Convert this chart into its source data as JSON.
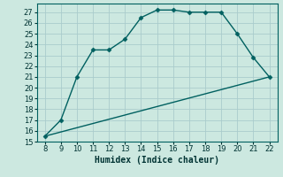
{
  "title": "",
  "xlabel": "Humidex (Indice chaleur)",
  "bg_color": "#cce8e0",
  "grid_color": "#aacccc",
  "line_color": "#006060",
  "curve_x": [
    8,
    9,
    10,
    11,
    12,
    13,
    14,
    15,
    16,
    17,
    18,
    19,
    20,
    21,
    22
  ],
  "curve_y": [
    15.5,
    17.0,
    21.0,
    23.5,
    23.5,
    24.5,
    26.5,
    27.2,
    27.2,
    27.0,
    27.0,
    27.0,
    25.0,
    22.8,
    21.0
  ],
  "line_x": [
    8,
    22
  ],
  "line_y": [
    15.5,
    21.0
  ],
  "xlim": [
    7.5,
    22.5
  ],
  "ylim": [
    15,
    27.8
  ],
  "xticks": [
    8,
    9,
    10,
    11,
    12,
    13,
    14,
    15,
    16,
    17,
    18,
    19,
    20,
    21,
    22
  ],
  "yticks": [
    15,
    16,
    17,
    18,
    19,
    20,
    21,
    22,
    23,
    24,
    25,
    26,
    27
  ],
  "marker": "D",
  "markersize": 2.5,
  "linewidth": 1.0,
  "fontsize_ticks": 6.0,
  "fontsize_xlabel": 7.0
}
